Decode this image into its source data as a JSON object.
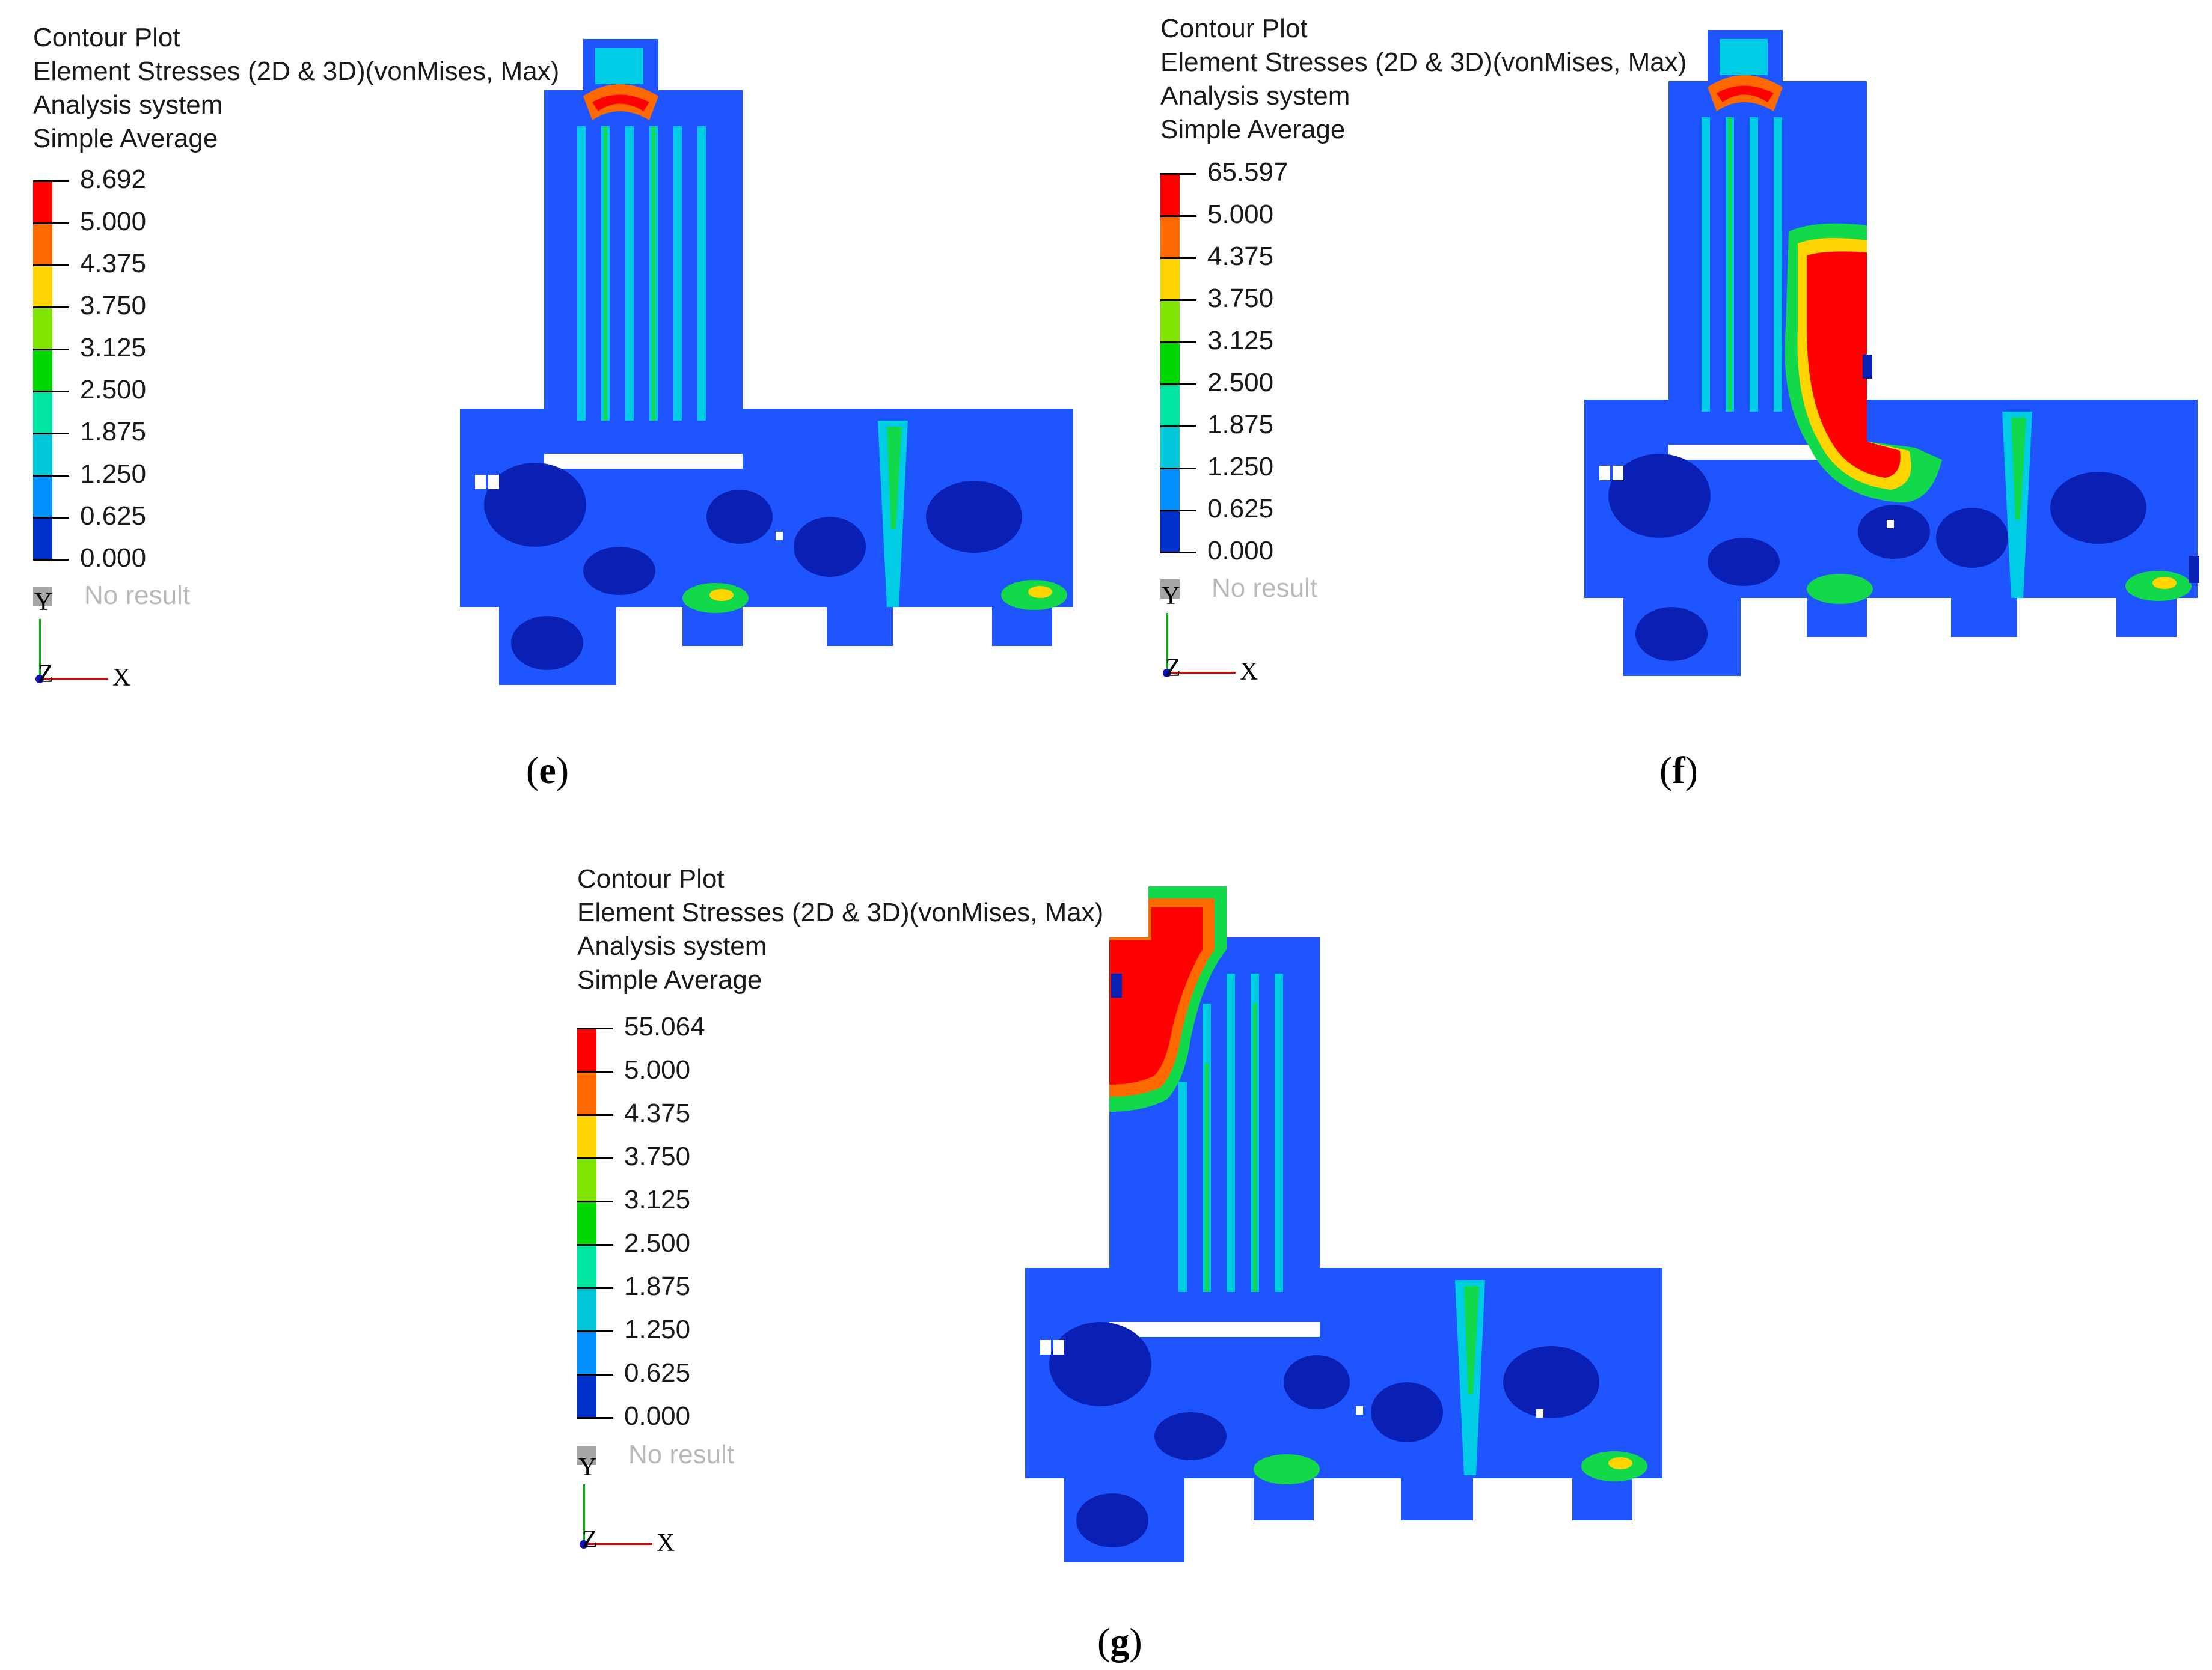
{
  "panels": [
    {
      "id": "e",
      "caption": "e",
      "header": [
        "Contour Plot",
        "Element Stresses (2D & 3D)(vonMises, Max)",
        "Analysis system",
        "Simple Average"
      ],
      "scale_labels": [
        "8.692",
        "5.000",
        "4.375",
        "3.750",
        "3.125",
        "2.500",
        "1.875",
        "1.250",
        "0.625",
        "0.000"
      ],
      "no_result": "No result",
      "axes": {
        "y": "Y",
        "z": "Z",
        "x": "X"
      }
    },
    {
      "id": "f",
      "caption": "f",
      "header": [
        "Contour Plot",
        "Element Stresses (2D & 3D)(vonMises, Max)",
        "Analysis system",
        "Simple Average"
      ],
      "scale_labels": [
        "65.597",
        "5.000",
        "4.375",
        "3.750",
        "3.125",
        "2.500",
        "1.875",
        "1.250",
        "0.625",
        "0.000"
      ],
      "no_result": "No result",
      "axes": {
        "y": "Y",
        "z": "Z",
        "x": "X"
      }
    },
    {
      "id": "g",
      "caption": "g",
      "header": [
        "Contour Plot",
        "Element Stresses (2D & 3D)(vonMises, Max)",
        "Analysis system",
        "Simple Average"
      ],
      "scale_labels": [
        "55.064",
        "5.000",
        "4.375",
        "3.750",
        "3.125",
        "2.500",
        "1.875",
        "1.250",
        "0.625",
        "0.000"
      ],
      "no_result": "No result",
      "axes": {
        "y": "Y",
        "z": "Z",
        "x": "X"
      }
    }
  ],
  "colors": {
    "scale": [
      "#ff0000",
      "#ff6a00",
      "#ffd400",
      "#7fe500",
      "#00d600",
      "#00e5a0",
      "#00c8d8",
      "#0090ff",
      "#0030cc"
    ],
    "dark_blue": "#0a1fb4",
    "mid_blue": "#1f55ff",
    "cyan": "#00cce6",
    "green": "#11d94a",
    "yellow": "#ffd400",
    "orange": "#ff6a00",
    "red": "#ff0000"
  }
}
